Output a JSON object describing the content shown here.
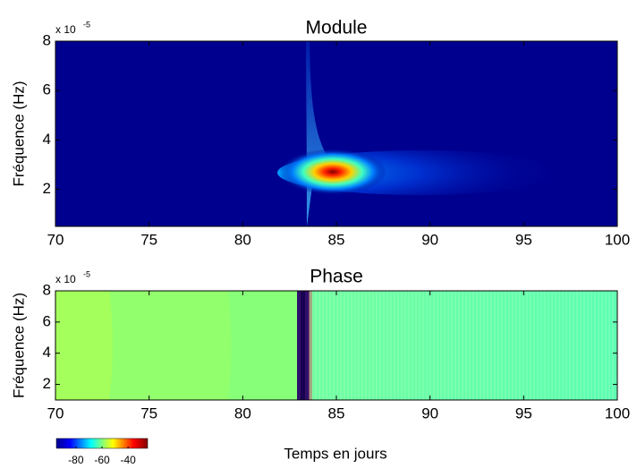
{
  "chart_data": [
    {
      "type": "heatmap",
      "title": "Module",
      "ylabel": "Fréquence (Hz)",
      "y_exponent": {
        "base": "x 10",
        "power": "-5"
      },
      "xlim": [
        70,
        100
      ],
      "xticks": [
        70,
        75,
        80,
        85,
        90,
        95,
        100
      ],
      "ylim": [
        0.5,
        8
      ],
      "yticks": [
        2,
        4,
        6,
        8
      ]
    },
    {
      "type": "heatmap",
      "title": "Phase",
      "ylabel": "Fréquence (Hz)",
      "y_exponent": {
        "base": "x 10",
        "power": "-5"
      },
      "xlabel": "Temps en jours",
      "xlim": [
        70,
        100
      ],
      "xticks": [
        70,
        75,
        80,
        85,
        90,
        95,
        100
      ],
      "ylim": [
        1,
        8
      ],
      "yticks": [
        2,
        4,
        6,
        8
      ],
      "colorbar": {
        "lim": [
          -95,
          -25
        ],
        "ticks": [
          -80,
          -60,
          -40
        ]
      }
    }
  ]
}
